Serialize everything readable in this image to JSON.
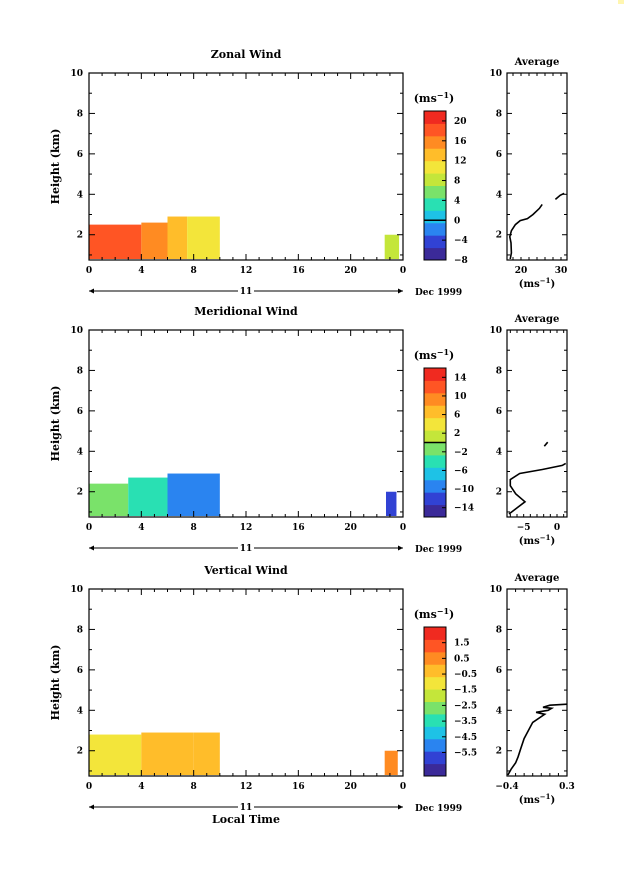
{
  "figure": {
    "x_axis_title": "Local Time",
    "date_label": "Dec 1999",
    "day_label": "11",
    "colorbar_unit": "(ms",
    "unit_exp": "−1",
    "profile_unit_open": "(ms",
    "profile_unit_close": ")",
    "colorbar_unit_close": ")"
  },
  "chart_data": [
    {
      "type": "heatmap",
      "title": "Zonal Wind",
      "xlabel": "",
      "ylabel": "Height (km)",
      "x_ticks": [
        "0",
        "4",
        "8",
        "12",
        "16",
        "20",
        "0"
      ],
      "y_ticks": [
        "2",
        "4",
        "6",
        "8",
        "10"
      ],
      "xlim": [
        0,
        24
      ],
      "ylim": [
        0.75,
        10
      ],
      "colorbar": {
        "label": "(ms−1)",
        "min": -8,
        "max": 22,
        "ticks": [
          "20",
          "16",
          "12",
          "8",
          "4",
          "0",
          "−4",
          "−8"
        ],
        "tick_values": [
          20,
          16,
          12,
          8,
          4,
          0,
          -4,
          -8
        ],
        "contour_at": 0
      },
      "regions": [
        {
          "x": [
            0,
            4
          ],
          "y": [
            0.8,
            2.5
          ],
          "value": 17
        },
        {
          "x": [
            4,
            6
          ],
          "y": [
            0.8,
            2.6
          ],
          "value": 15
        },
        {
          "x": [
            6,
            7.5
          ],
          "y": [
            0.8,
            2.9
          ],
          "value": 13
        },
        {
          "x": [
            7.5,
            10
          ],
          "y": [
            0.8,
            2.9
          ],
          "value": 11
        },
        {
          "x": [
            22.6,
            23.7
          ],
          "y": [
            0.8,
            2.0
          ],
          "value": 8
        }
      ],
      "profile": {
        "title": "Average",
        "xlabel": "(ms−1)",
        "x_ticks": [
          "20",
          "30"
        ],
        "y_ticks": [
          "2",
          "4",
          "6",
          "8",
          "10"
        ],
        "xlim": [
          16.5,
          31.5
        ],
        "ylim": [
          0.75,
          10
        ],
        "segments": [
          [
            [
              17.3,
              0.8
            ],
            [
              17.6,
              1.1
            ],
            [
              17.5,
              1.6
            ],
            [
              17.2,
              1.9
            ],
            [
              17.6,
              2.2
            ],
            [
              18.6,
              2.5
            ],
            [
              19.8,
              2.7
            ],
            [
              21.6,
              2.8
            ],
            [
              23.0,
              3.0
            ],
            [
              24.6,
              3.3
            ],
            [
              25.3,
              3.5
            ]
          ],
          [
            [
              28.6,
              3.75
            ],
            [
              29.8,
              3.95
            ],
            [
              30.8,
              4.05
            ]
          ]
        ]
      }
    },
    {
      "type": "heatmap",
      "title": "Meridional Wind",
      "xlabel": "",
      "ylabel": "Height (km)",
      "x_ticks": [
        "0",
        "4",
        "8",
        "12",
        "16",
        "20",
        "0"
      ],
      "y_ticks": [
        "2",
        "4",
        "6",
        "8",
        "10"
      ],
      "xlim": [
        0,
        24
      ],
      "ylim": [
        0.75,
        10
      ],
      "colorbar": {
        "label": "(ms−1)",
        "min": -16,
        "max": 16,
        "ticks": [
          "14",
          "10",
          "6",
          "2",
          "−2",
          "−6",
          "−10",
          "−14"
        ],
        "tick_values": [
          14,
          10,
          6,
          2,
          -2,
          -6,
          -10,
          -14
        ],
        "contour_at": 0
      },
      "regions": [
        {
          "x": [
            0,
            3
          ],
          "y": [
            0.8,
            2.4
          ],
          "value": -2
        },
        {
          "x": [
            3,
            6
          ],
          "y": [
            0.8,
            2.7
          ],
          "value": -5
        },
        {
          "x": [
            6,
            10
          ],
          "y": [
            0.8,
            2.9
          ],
          "value": -9
        },
        {
          "x": [
            22.7,
            23.5
          ],
          "y": [
            0.8,
            2.0
          ],
          "value": -12
        }
      ],
      "profile": {
        "title": "Average",
        "xlabel": "(ms−1)",
        "x_ticks": [
          "−5",
          "0"
        ],
        "y_ticks": [
          "2",
          "4",
          "6",
          "8",
          "10"
        ],
        "xlim": [
          -7.5,
          1.5
        ],
        "ylim": [
          0.75,
          10
        ],
        "segments": [
          [
            [
              -7.2,
              0.9
            ],
            [
              -6.0,
              1.2
            ],
            [
              -4.8,
              1.5
            ],
            [
              -6.2,
              1.9
            ],
            [
              -7.0,
              2.3
            ],
            [
              -7.0,
              2.6
            ],
            [
              -5.6,
              2.9
            ],
            [
              -2.2,
              3.1
            ],
            [
              0.8,
              3.3
            ],
            [
              1.3,
              3.4
            ]
          ],
          [
            [
              -1.9,
              4.25
            ],
            [
              -1.4,
              4.45
            ]
          ]
        ]
      }
    },
    {
      "type": "heatmap",
      "title": "Vertical Wind",
      "xlabel": "Local Time",
      "ylabel": "Height (km)",
      "x_ticks": [
        "0",
        "4",
        "8",
        "12",
        "16",
        "20",
        "0"
      ],
      "y_ticks": [
        "2",
        "4",
        "6",
        "8",
        "10"
      ],
      "xlim": [
        0,
        24
      ],
      "ylim": [
        0.75,
        10
      ],
      "colorbar": {
        "label": "(ms−1)",
        "min": -7,
        "max": 2.5,
        "ticks": [
          "1.5",
          "0.5",
          "−0.5",
          "−1.5",
          "−2.5",
          "−3.5",
          "−4.5",
          "−5.5"
        ],
        "tick_values": [
          1.5,
          0.5,
          -0.5,
          -1.5,
          -2.5,
          -3.5,
          -4.5,
          -5.5
        ]
      },
      "regions": [
        {
          "x": [
            0,
            4
          ],
          "y": [
            0.8,
            2.8
          ],
          "value": -0.7
        },
        {
          "x": [
            4,
            8
          ],
          "y": [
            0.8,
            2.9
          ],
          "value": -0.2
        },
        {
          "x": [
            8,
            10
          ],
          "y": [
            0.8,
            2.9
          ],
          "value": -0.6
        },
        {
          "x": [
            22.6,
            23.6
          ],
          "y": [
            0.8,
            2.0
          ],
          "value": 0.3
        }
      ],
      "profile": {
        "title": "Average",
        "xlabel": "(ms−1)",
        "x_ticks": [
          "−0.4",
          "0.3"
        ],
        "y_ticks": [
          "2",
          "4",
          "6",
          "8",
          "10"
        ],
        "xlim": [
          -0.4,
          0.3
        ],
        "ylim": [
          0.75,
          10
        ],
        "segments": [
          [
            [
              -0.39,
              0.8
            ],
            [
              -0.35,
              1.1
            ],
            [
              -0.3,
              1.4
            ],
            [
              -0.27,
              1.7
            ],
            [
              -0.24,
              2.1
            ],
            [
              -0.2,
              2.6
            ],
            [
              -0.15,
              3.0
            ],
            [
              -0.1,
              3.4
            ],
            [
              0.04,
              3.8
            ],
            [
              -0.06,
              3.9
            ],
            [
              0.08,
              4.0
            ],
            [
              0.12,
              4.1
            ],
            [
              0.02,
              4.15
            ],
            [
              0.1,
              4.25
            ],
            [
              0.3,
              4.3
            ]
          ]
        ]
      }
    }
  ]
}
